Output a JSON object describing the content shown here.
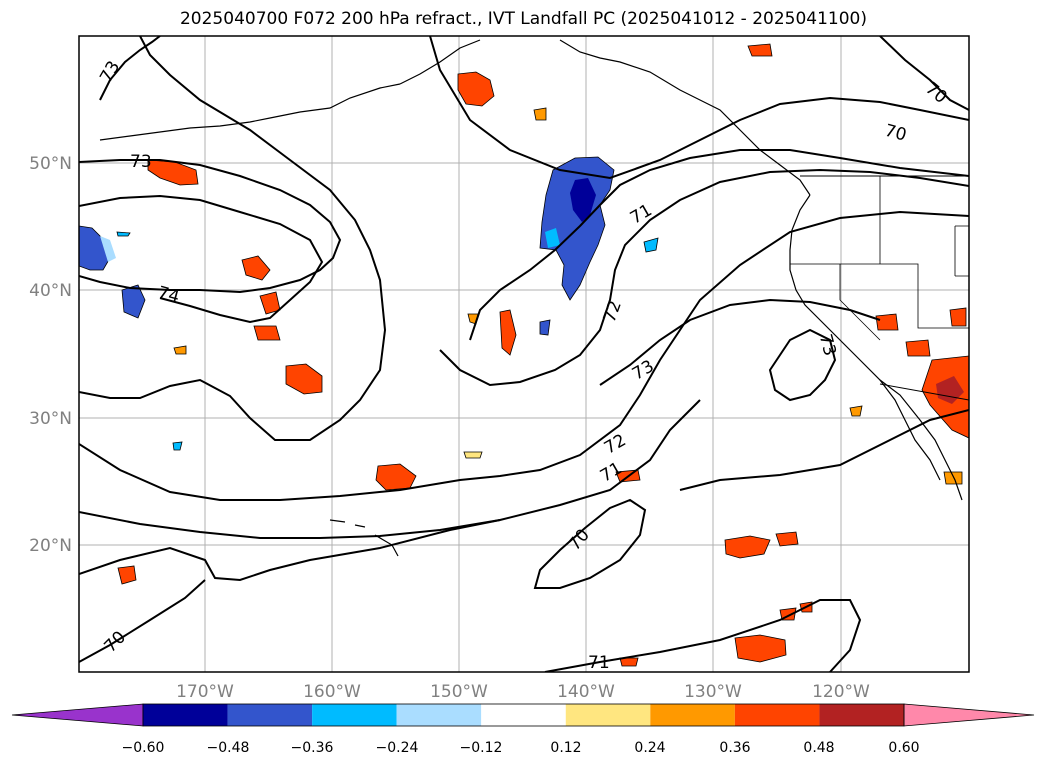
{
  "title": "2025040700 F072 200 hPa refract., IVT Landfall PC (2025041012 - 2025041100)",
  "latitude_labels": [
    "50°N",
    "40°N",
    "30°N",
    "20°N"
  ],
  "longitude_labels": [
    "170°W",
    "160°W",
    "150°W",
    "140°W",
    "130°W",
    "120°W"
  ],
  "contour_labels": [
    "73",
    "70",
    "70",
    "73",
    "71",
    "74",
    "72",
    "73",
    "73",
    "72",
    "71",
    "70",
    "70",
    "71"
  ],
  "colorbar": {
    "ticks": [
      "−0.60",
      "−0.48",
      "−0.36",
      "−0.24",
      "−0.12",
      "0.12",
      "0.24",
      "0.36",
      "0.48",
      "0.60"
    ],
    "colors": [
      "#9933cc",
      "#000099",
      "#3355cc",
      "#00bbff",
      "#aaddff",
      "#ffffff",
      "#ffe680",
      "#ff9900",
      "#ff4400",
      "#b22222",
      "#ff88aa"
    ],
    "extend": "both"
  }
}
